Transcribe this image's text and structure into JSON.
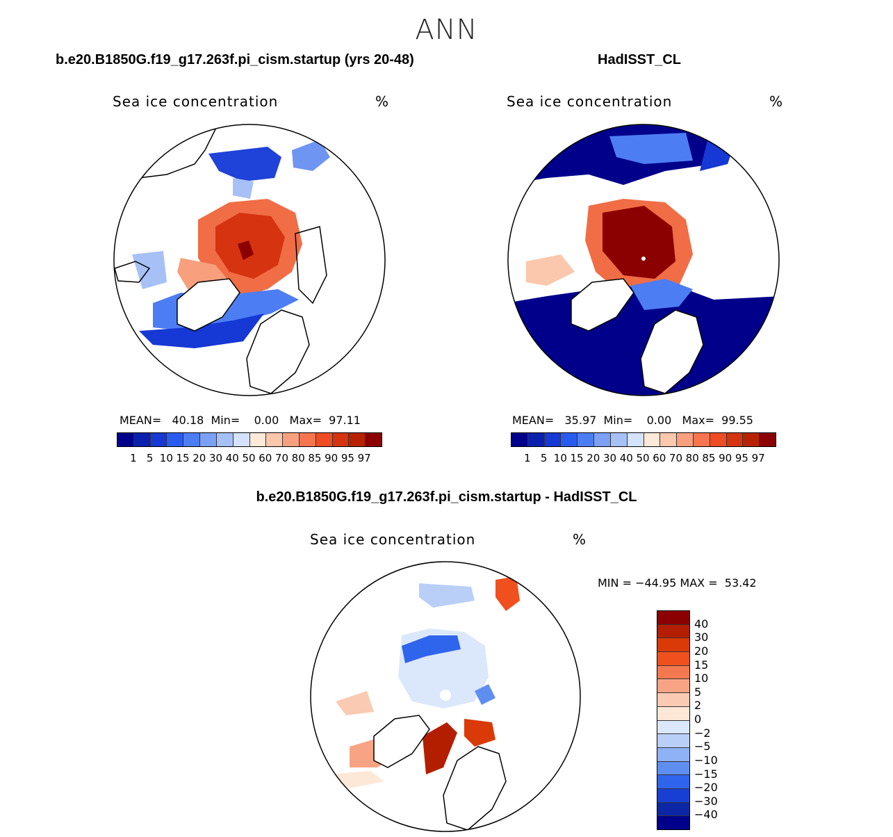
{
  "page_title": "ANN",
  "field_label": "Sea ice concentration",
  "unit": "%",
  "panels": [
    {
      "title": "b.e20.B1850G.f19_g17.263f.pi_cism.startup (yrs 20-48)",
      "stats": {
        "mean_label": "MEAN=",
        "mean": "40.18",
        "min_label": "Min=",
        "min": "0.00",
        "max_label": "Max=",
        "max": "97.11"
      }
    },
    {
      "title": "HadISST_CL",
      "stats": {
        "mean_label": "MEAN=",
        "mean": "35.97",
        "min_label": "Min=",
        "min": "0.00",
        "max_label": "Max=",
        "max": "99.55"
      }
    },
    {
      "title": "b.e20.B1850G.f19_g17.263f.pi_cism.startup - HadISST_CL",
      "stats": {
        "min_label": "MIN =",
        "min": "−44.95",
        "max_label": "MAX =",
        "max": "53.42"
      }
    }
  ],
  "abs_colorbar": {
    "colors": [
      "#00008b",
      "#0a1fae",
      "#1638d4",
      "#2a5bf0",
      "#4d7df2",
      "#7ba0f5",
      "#a7c1f7",
      "#d4e3fb",
      "#fde9d9",
      "#fbc7ad",
      "#f8a07e",
      "#f4754f",
      "#ef4c24",
      "#d63310",
      "#b82203",
      "#8b0000"
    ],
    "ticks": [
      "1",
      "5",
      "10",
      "15",
      "20",
      "30",
      "40",
      "50",
      "60",
      "70",
      "80",
      "85",
      "90",
      "95",
      "97"
    ]
  },
  "diff_colorbar": {
    "colors": [
      "#8b0000",
      "#b31e00",
      "#d93a08",
      "#f0501e",
      "#f4784f",
      "#f8a484",
      "#fbcab2",
      "#fde7d7",
      "#dbe8fb",
      "#b9cff7",
      "#8fb1f5",
      "#5f8ef1",
      "#2f64ec",
      "#183fd4",
      "#0c27a6",
      "#00008b"
    ],
    "ticks": [
      "40",
      "30",
      "20",
      "15",
      "10",
      "5",
      "2",
      "0",
      "−2",
      "−5",
      "−10",
      "−15",
      "−20",
      "−30",
      "−40"
    ]
  }
}
